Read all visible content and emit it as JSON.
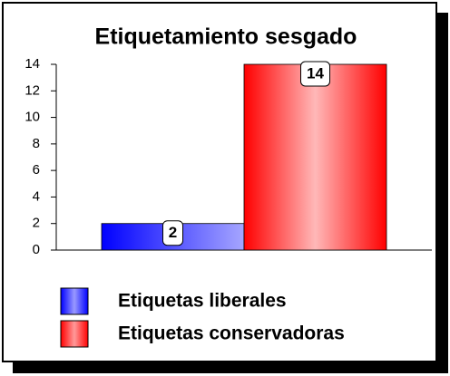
{
  "chart_data": {
    "type": "bar",
    "title": "Etiquetamiento sesgado",
    "categories": [
      null
    ],
    "series": [
      {
        "name": "Etiquetas liberales",
        "color": "#0000ff",
        "values": [
          2
        ]
      },
      {
        "name": "Etiquetas conservadoras",
        "color": "#ff0000",
        "values": [
          14
        ]
      }
    ],
    "ylim": [
      0,
      14
    ],
    "yticks": [
      0,
      2,
      4,
      6,
      8,
      10,
      12,
      14
    ],
    "grid": false,
    "legend": "bottom"
  }
}
